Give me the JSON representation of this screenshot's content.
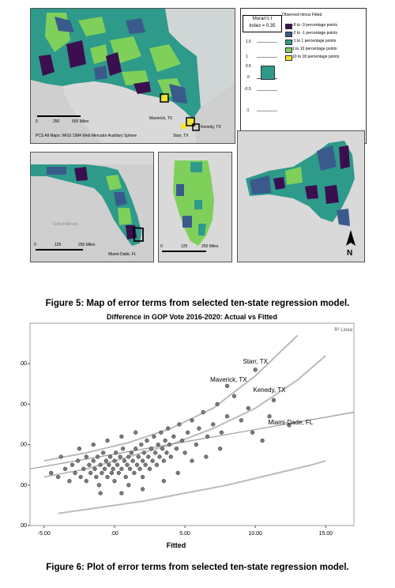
{
  "map_panel": {
    "moran_title_line1": "Moran's I",
    "moran_title_line2": "Index = 0.35",
    "moran_axis_ticks": [
      "1.5",
      "1",
      "0.5",
      "0",
      "-0.5",
      "-1"
    ],
    "legend_title": "Observed minus Fitted",
    "legend_items": [
      {
        "label": "-8 to -3 percentage points",
        "color": "#3b0f4f"
      },
      {
        "label": "-2 to -1 percentage points",
        "color": "#3a5a8c"
      },
      {
        "label": "-1 to 1 percentage points",
        "color": "#2e9a8a"
      },
      {
        "label": "1 to 10 percentage points",
        "color": "#7fd05a"
      },
      {
        "label": "10 to 18 percentage points",
        "color": "#f2e52a"
      }
    ],
    "main_map": {
      "scale_labels": [
        "0",
        "250",
        "500 Miles"
      ],
      "projection_note": "PCS All Maps: WGS 1984 Web Mercator Auxiliary Sphere",
      "county_labels": [
        "Maverick, TX",
        "Kenedy, TX",
        "Starr, TX"
      ]
    },
    "florida_map": {
      "scale_labels": [
        "0",
        "125",
        "250 Miles"
      ],
      "county_label": "Miami-Dade, FL",
      "water_label": "Gulf of Mexico"
    },
    "illinois_map": {
      "scale_labels": [
        "0",
        "125",
        "250 Miles"
      ]
    },
    "newyork_map": {
      "north_arrow": "N"
    },
    "colors": {
      "water": "#cfcfcf",
      "land_gray": "#d9d9d9",
      "selected_border": "#000000"
    }
  },
  "figure5_caption": "Figure 5: Map of error terms from selected ten-state regression model.",
  "figure6_caption": "Figure 6: Plot of error terms from selected ten-state regression model.",
  "chart_data": {
    "type": "scatter",
    "title": "Difference in GOP Vote 2016-2020: Actual vs Fitted",
    "xlabel": "Fitted",
    "ylabel": "",
    "legend_text": "R² Linea",
    "x_ticks": [
      "-5.00",
      ".00",
      "5.00",
      "10.00",
      "15.00"
    ],
    "y_ticks": [
      ".00",
      ".00",
      ".00",
      ".00",
      ".00"
    ],
    "xlim": [
      -6,
      17
    ],
    "ylim": [
      -20,
      30
    ],
    "annotations": [
      {
        "text": "Maverick, TX",
        "x": 8.1,
        "y": 15.5
      },
      {
        "text": "Starr, TX",
        "x": 10,
        "y": 20
      },
      {
        "text": "Kenedy, TX",
        "x": 11,
        "y": 13
      },
      {
        "text": "Miami-Dade, FL",
        "x": 12.5,
        "y": 5
      }
    ],
    "highlight_points": [
      {
        "x": 8,
        "y": 14.5
      },
      {
        "x": 10,
        "y": 18.5
      },
      {
        "x": 11.3,
        "y": 11
      },
      {
        "x": 12.4,
        "y": 4.8
      }
    ],
    "fit_line": {
      "x": [
        -6,
        17
      ],
      "y": [
        -6,
        8
      ]
    },
    "upper_curve": {
      "x": [
        -5,
        -2,
        1,
        4,
        7,
        10,
        13
      ],
      "y": [
        -4,
        -2,
        0.5,
        4,
        9,
        17,
        27
      ]
    },
    "upper_inner_curve": {
      "x": [
        -5,
        -2,
        1,
        4,
        7,
        10,
        13,
        15
      ],
      "y": [
        -8,
        -6,
        -3,
        0,
        4,
        9,
        16,
        22
      ]
    },
    "lower_curve": {
      "x": [
        -4,
        -1,
        2,
        5,
        8,
        11,
        14,
        15
      ],
      "y": [
        -17,
        -15.5,
        -14,
        -12,
        -10,
        -7.5,
        -5,
        -4
      ]
    },
    "points": [
      {
        "x": -4.5,
        "y": -7
      },
      {
        "x": -4,
        "y": -8
      },
      {
        "x": -3.5,
        "y": -6
      },
      {
        "x": -3.2,
        "y": -9
      },
      {
        "x": -3,
        "y": -5
      },
      {
        "x": -2.8,
        "y": -7
      },
      {
        "x": -2.6,
        "y": -4
      },
      {
        "x": -2.4,
        "y": -8
      },
      {
        "x": -2.2,
        "y": -6
      },
      {
        "x": -2,
        "y": -3
      },
      {
        "x": -2,
        "y": -9
      },
      {
        "x": -1.8,
        "y": -5
      },
      {
        "x": -1.7,
        "y": -7
      },
      {
        "x": -1.5,
        "y": -4
      },
      {
        "x": -1.4,
        "y": -6
      },
      {
        "x": -1.3,
        "y": -8
      },
      {
        "x": -1.2,
        "y": -3
      },
      {
        "x": -1.1,
        "y": -10
      },
      {
        "x": -1,
        "y": -5
      },
      {
        "x": -0.9,
        "y": -7
      },
      {
        "x": -0.8,
        "y": -2
      },
      {
        "x": -0.7,
        "y": -6
      },
      {
        "x": -0.6,
        "y": -4
      },
      {
        "x": -0.5,
        "y": -8
      },
      {
        "x": -0.4,
        "y": -5
      },
      {
        "x": -0.3,
        "y": -3
      },
      {
        "x": -0.2,
        "y": -7
      },
      {
        "x": -0.1,
        "y": -6
      },
      {
        "x": 0,
        "y": -4
      },
      {
        "x": 0,
        "y": -9
      },
      {
        "x": 0.1,
        "y": -2
      },
      {
        "x": 0.2,
        "y": -5
      },
      {
        "x": 0.3,
        "y": -7
      },
      {
        "x": 0.4,
        "y": -3
      },
      {
        "x": 0.5,
        "y": -6
      },
      {
        "x": 0.6,
        "y": -1
      },
      {
        "x": 0.7,
        "y": -4
      },
      {
        "x": 0.8,
        "y": -8
      },
      {
        "x": 0.9,
        "y": -5
      },
      {
        "x": 1,
        "y": -3
      },
      {
        "x": 1,
        "y": -10
      },
      {
        "x": 1.1,
        "y": -6
      },
      {
        "x": 1.2,
        "y": -2
      },
      {
        "x": 1.3,
        "y": -4
      },
      {
        "x": 1.4,
        "y": -7
      },
      {
        "x": 1.5,
        "y": -1
      },
      {
        "x": 1.6,
        "y": -5
      },
      {
        "x": 1.7,
        "y": -3
      },
      {
        "x": 1.8,
        "y": -6
      },
      {
        "x": 1.9,
        "y": 0
      },
      {
        "x": 2,
        "y": -4
      },
      {
        "x": 2,
        "y": -8
      },
      {
        "x": 2.1,
        "y": -2
      },
      {
        "x": 2.2,
        "y": -5
      },
      {
        "x": 2.3,
        "y": 1
      },
      {
        "x": 2.4,
        "y": -3
      },
      {
        "x": 2.5,
        "y": -6
      },
      {
        "x": 2.6,
        "y": -1
      },
      {
        "x": 2.7,
        "y": -4
      },
      {
        "x": 2.8,
        "y": 2
      },
      {
        "x": 2.9,
        "y": -2
      },
      {
        "x": 3,
        "y": -5
      },
      {
        "x": 3.1,
        "y": 0
      },
      {
        "x": 3.2,
        "y": -3
      },
      {
        "x": 3.3,
        "y": 3
      },
      {
        "x": 3.4,
        "y": -1
      },
      {
        "x": 3.5,
        "y": -4
      },
      {
        "x": 3.6,
        "y": 1
      },
      {
        "x": 3.7,
        "y": -2
      },
      {
        "x": 3.8,
        "y": 4
      },
      {
        "x": 3.9,
        "y": 0
      },
      {
        "x": 4,
        "y": -3
      },
      {
        "x": 4.2,
        "y": 2
      },
      {
        "x": 4.4,
        "y": -1
      },
      {
        "x": 4.6,
        "y": 5
      },
      {
        "x": 4.8,
        "y": 1
      },
      {
        "x": 5,
        "y": -2
      },
      {
        "x": 5.2,
        "y": 3
      },
      {
        "x": 5.5,
        "y": 6
      },
      {
        "x": 5.8,
        "y": 0
      },
      {
        "x": 6,
        "y": 4
      },
      {
        "x": 6.3,
        "y": 8
      },
      {
        "x": 6.6,
        "y": 2
      },
      {
        "x": 7,
        "y": 5
      },
      {
        "x": 7.3,
        "y": 10
      },
      {
        "x": 7.6,
        "y": 3
      },
      {
        "x": 8,
        "y": 7
      },
      {
        "x": 8.5,
        "y": 12
      },
      {
        "x": 9,
        "y": 6
      },
      {
        "x": 9.5,
        "y": 9
      },
      {
        "x": -3.8,
        "y": -3
      },
      {
        "x": -2.5,
        "y": -1
      },
      {
        "x": -1.5,
        "y": 0
      },
      {
        "x": -0.5,
        "y": 1
      },
      {
        "x": 0.5,
        "y": 2
      },
      {
        "x": 1.5,
        "y": 3
      },
      {
        "x": -1,
        "y": -12
      },
      {
        "x": 0.5,
        "y": -12
      },
      {
        "x": 2,
        "y": -11
      },
      {
        "x": 3.5,
        "y": -9
      },
      {
        "x": 4.5,
        "y": -7
      },
      {
        "x": 5.5,
        "y": -4
      },
      {
        "x": 6.5,
        "y": -3
      },
      {
        "x": 7.5,
        "y": -1
      },
      {
        "x": 10.5,
        "y": 1
      },
      {
        "x": 11,
        "y": 7
      },
      {
        "x": 9.8,
        "y": 3
      }
    ]
  }
}
